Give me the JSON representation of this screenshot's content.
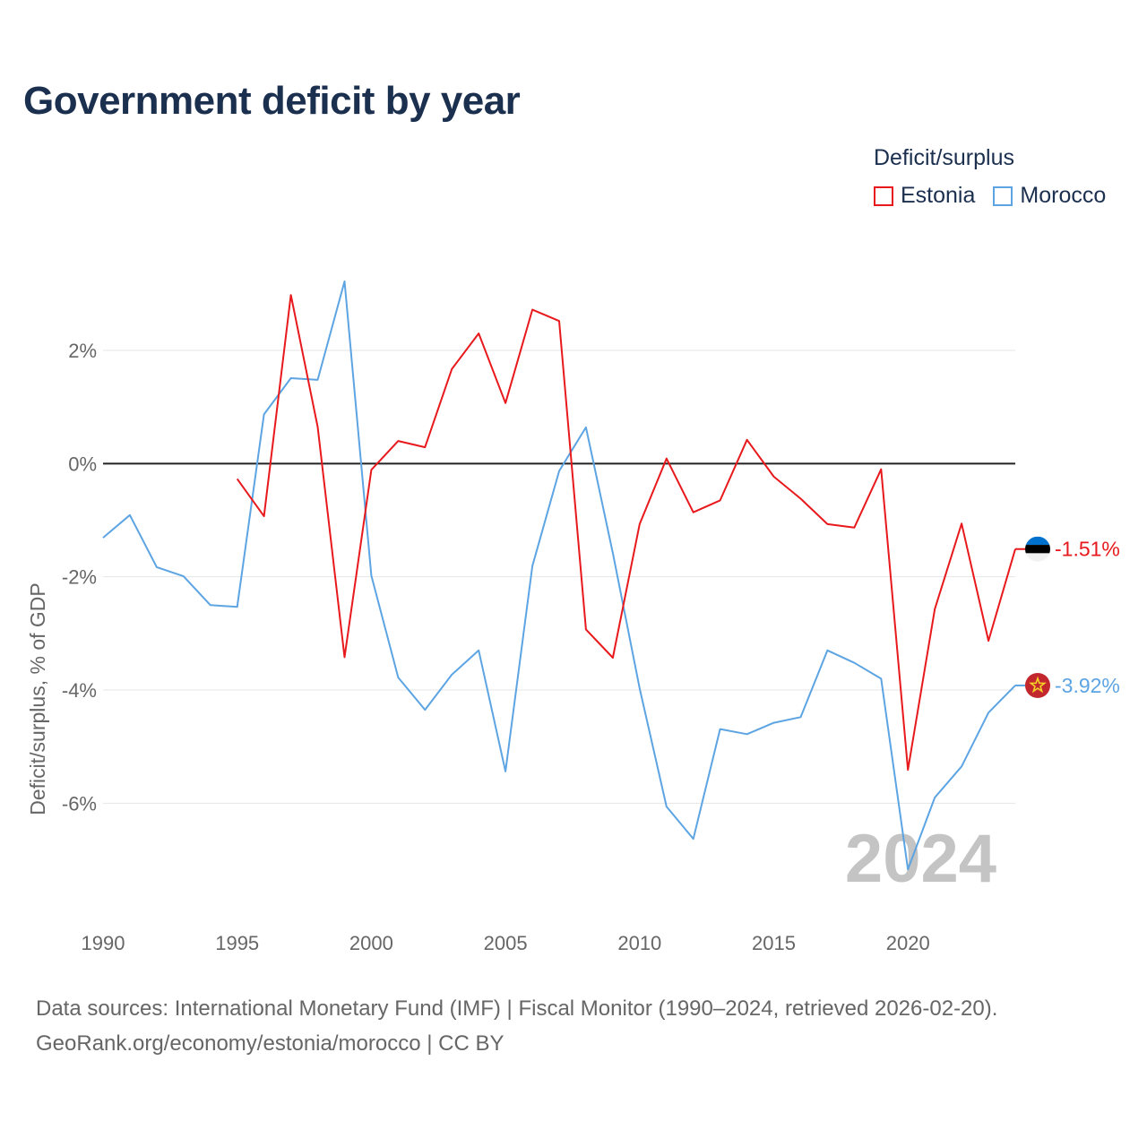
{
  "title": "Government deficit by year",
  "legend": {
    "title": "Deficit/surplus",
    "items": [
      {
        "label": "Estonia",
        "color": "#e8191c"
      },
      {
        "label": "Morocco",
        "color": "#5da4e3"
      }
    ]
  },
  "source": {
    "line1": "Data sources: International Monetary Fund (IMF) | Fiscal Monitor (1990–2024, retrieved 2026-02-20).",
    "line2": "GeoRank.org/economy/estonia/morocco | CC BY"
  },
  "chart_data": {
    "type": "line",
    "ylabel": "Deficit/surplus, % of GDP",
    "xlabel": "",
    "xlim": [
      1990,
      2024
    ],
    "ylim": [
      -7.8,
      3.6
    ],
    "xticks": [
      1990,
      1995,
      2000,
      2005,
      2010,
      2015,
      2020
    ],
    "yticks": [
      {
        "value": 2,
        "label": "2%"
      },
      {
        "value": 0,
        "label": "0%"
      },
      {
        "value": -2,
        "label": "-2%"
      },
      {
        "value": -4,
        "label": "-4%"
      },
      {
        "value": -6,
        "label": "-6%"
      }
    ],
    "year_watermark": "2024",
    "series": [
      {
        "name": "Estonia",
        "color": "#e8191c",
        "end_label": "-1.51%",
        "flag": "estonia-flag",
        "x": [
          1995,
          1996,
          1997,
          1998,
          1999,
          2000,
          2001,
          2002,
          2003,
          2004,
          2005,
          2006,
          2007,
          2008,
          2009,
          2010,
          2011,
          2012,
          2013,
          2014,
          2015,
          2016,
          2017,
          2018,
          2019,
          2020,
          2021,
          2022,
          2023,
          2024
        ],
        "values": [
          -0.27,
          -0.93,
          2.98,
          0.65,
          -3.42,
          -0.11,
          0.4,
          0.29,
          1.67,
          2.3,
          1.07,
          2.72,
          2.52,
          -2.93,
          -3.43,
          -1.07,
          0.09,
          -0.86,
          -0.65,
          0.42,
          -0.23,
          -0.62,
          -1.07,
          -1.13,
          -0.1,
          -5.41,
          -2.57,
          -1.06,
          -3.13,
          -1.51
        ]
      },
      {
        "name": "Morocco",
        "color": "#5da4e3",
        "end_label": "-3.92%",
        "flag": "morocco-flag",
        "x": [
          1990,
          1991,
          1992,
          1993,
          1994,
          1995,
          1996,
          1997,
          1998,
          1999,
          2000,
          2001,
          2002,
          2003,
          2004,
          2005,
          2006,
          2007,
          2008,
          2009,
          2010,
          2011,
          2012,
          2013,
          2014,
          2015,
          2016,
          2017,
          2018,
          2019,
          2020,
          2021,
          2022,
          2023,
          2024
        ],
        "values": [
          -1.31,
          -0.91,
          -1.83,
          -1.99,
          -2.5,
          -2.53,
          0.87,
          1.51,
          1.48,
          3.22,
          -1.98,
          -3.78,
          -4.35,
          -3.73,
          -3.3,
          -5.44,
          -1.81,
          -0.13,
          0.64,
          -1.58,
          -3.97,
          -6.06,
          -6.63,
          -4.69,
          -4.78,
          -4.58,
          -4.48,
          -3.3,
          -3.52,
          -3.8,
          -7.17,
          -5.9,
          -5.35,
          -4.4,
          -3.92
        ]
      }
    ]
  }
}
